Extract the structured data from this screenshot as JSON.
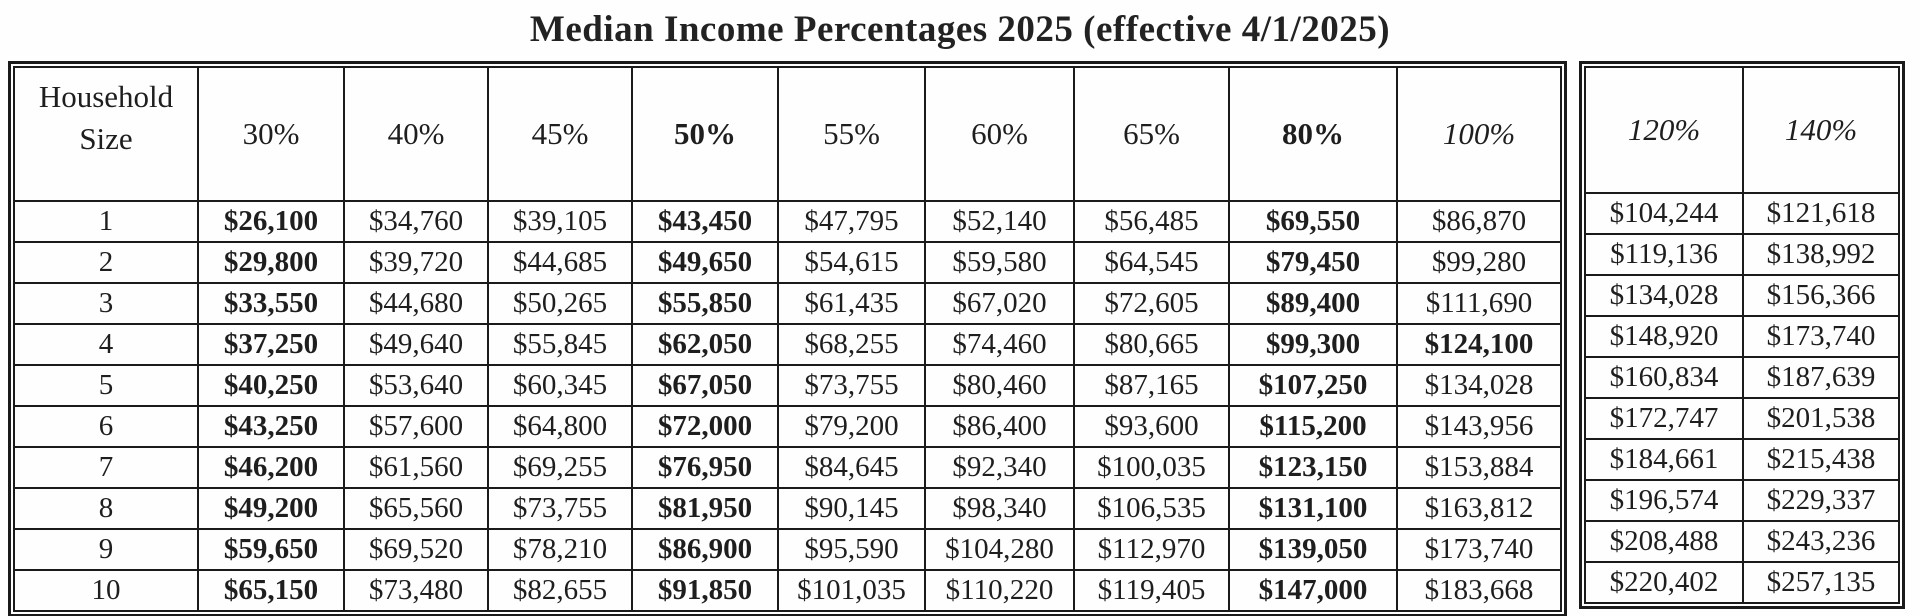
{
  "title": "Median Income Percentages 2025 (effective 4/1/2025)",
  "table": {
    "corner_header": "Household\nSize",
    "columns": [
      {
        "label": "30%",
        "header_bold": false,
        "header_italic": false,
        "cells_bold": true,
        "section": "main"
      },
      {
        "label": "40%",
        "header_bold": false,
        "header_italic": false,
        "cells_bold": false,
        "section": "main"
      },
      {
        "label": "45%",
        "header_bold": false,
        "header_italic": false,
        "cells_bold": false,
        "section": "main"
      },
      {
        "label": "50%",
        "header_bold": true,
        "header_italic": false,
        "cells_bold": true,
        "section": "main"
      },
      {
        "label": "55%",
        "header_bold": false,
        "header_italic": false,
        "cells_bold": false,
        "section": "main"
      },
      {
        "label": "60%",
        "header_bold": false,
        "header_italic": false,
        "cells_bold": false,
        "section": "main"
      },
      {
        "label": "65%",
        "header_bold": false,
        "header_italic": false,
        "cells_bold": false,
        "section": "main"
      },
      {
        "label": "80%",
        "header_bold": true,
        "header_italic": false,
        "cells_bold": true,
        "section": "main"
      },
      {
        "label": "100%",
        "header_bold": false,
        "header_italic": true,
        "cells_bold": false,
        "section": "main"
      },
      {
        "label": "120%",
        "header_bold": false,
        "header_italic": true,
        "cells_bold": false,
        "section": "extended"
      },
      {
        "label": "140%",
        "header_bold": false,
        "header_italic": true,
        "cells_bold": false,
        "section": "extended"
      }
    ],
    "rows": [
      {
        "household_size": "1",
        "values": [
          "$26,100",
          "$34,760",
          "$39,105",
          "$43,450",
          "$47,795",
          "$52,140",
          "$56,485",
          "$69,550",
          "$86,870",
          "$104,244",
          "$121,618"
        ]
      },
      {
        "household_size": "2",
        "values": [
          "$29,800",
          "$39,720",
          "$44,685",
          "$49,650",
          "$54,615",
          "$59,580",
          "$64,545",
          "$79,450",
          "$99,280",
          "$119,136",
          "$138,992"
        ]
      },
      {
        "household_size": "3",
        "values": [
          "$33,550",
          "$44,680",
          "$50,265",
          "$55,850",
          "$61,435",
          "$67,020",
          "$72,605",
          "$89,400",
          "$111,690",
          "$134,028",
          "$156,366"
        ]
      },
      {
        "household_size": "4",
        "values": [
          "$37,250",
          "$49,640",
          "$55,845",
          "$62,050",
          "$68,255",
          "$74,460",
          "$80,665",
          "$99,300",
          "$124,100",
          "$148,920",
          "$173,740"
        ]
      },
      {
        "household_size": "5",
        "values": [
          "$40,250",
          "$53,640",
          "$60,345",
          "$67,050",
          "$73,755",
          "$80,460",
          "$87,165",
          "$107,250",
          "$134,028",
          "$160,834",
          "$187,639"
        ]
      },
      {
        "household_size": "6",
        "values": [
          "$43,250",
          "$57,600",
          "$64,800",
          "$72,000",
          "$79,200",
          "$86,400",
          "$93,600",
          "$115,200",
          "$143,956",
          "$172,747",
          "$201,538"
        ]
      },
      {
        "household_size": "7",
        "values": [
          "$46,200",
          "$61,560",
          "$69,255",
          "$76,950",
          "$84,645",
          "$92,340",
          "$100,035",
          "$123,150",
          "$153,884",
          "$184,661",
          "$215,438"
        ]
      },
      {
        "household_size": "8",
        "values": [
          "$49,200",
          "$65,560",
          "$73,755",
          "$81,950",
          "$90,145",
          "$98,340",
          "$106,535",
          "$131,100",
          "$163,812",
          "$196,574",
          "$229,337"
        ]
      },
      {
        "household_size": "9",
        "values": [
          "$59,650",
          "$69,520",
          "$78,210",
          "$86,900",
          "$95,590",
          "$104,280",
          "$112,970",
          "$139,050",
          "$173,740",
          "$208,488",
          "$243,236"
        ]
      },
      {
        "household_size": "10",
        "values": [
          "$65,150",
          "$73,480",
          "$82,655",
          "$91,850",
          "$101,035",
          "$110,220",
          "$119,405",
          "$147,000",
          "$183,668",
          "$220,402",
          "$257,135"
        ]
      }
    ],
    "bold_overrides": [
      {
        "row_index": 3,
        "col_index": 8
      }
    ]
  }
}
